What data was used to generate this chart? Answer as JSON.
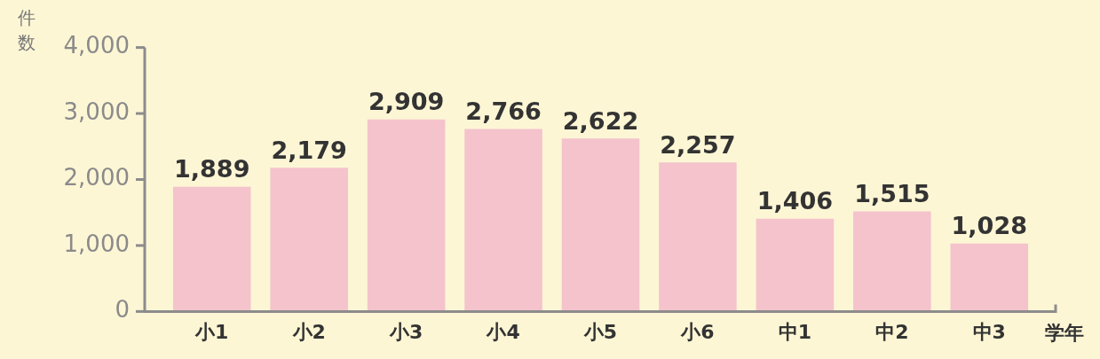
{
  "chart_data": {
    "type": "bar",
    "ylabel": "件数",
    "xlabel": "学年",
    "categories": [
      "小1",
      "小2",
      "小3",
      "小4",
      "小5",
      "小6",
      "中1",
      "中2",
      "中3"
    ],
    "values": [
      1889,
      2179,
      2909,
      2766,
      2622,
      2257,
      1406,
      1515,
      1028
    ],
    "color": "#f4c3cc",
    "value_labels": [
      "1,889",
      "2,179",
      "2,909",
      "2,766",
      "2,622",
      "2,257",
      "1,406",
      "1,515",
      "1,028"
    ],
    "grid": false,
    "legend": false,
    "ylim": [
      0,
      4000
    ],
    "yticks": [
      {
        "value": 0,
        "label": "0"
      },
      {
        "value": 1000,
        "label": "1,000"
      },
      {
        "value": 2000,
        "label": "2,000"
      },
      {
        "value": 3000,
        "label": "3,000"
      },
      {
        "value": 4000,
        "label": "4,000"
      }
    ]
  }
}
